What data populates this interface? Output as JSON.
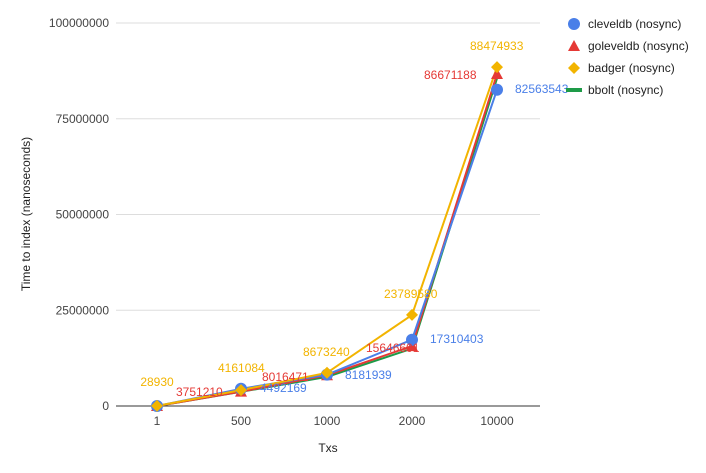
{
  "chart_data": {
    "type": "line",
    "title": "",
    "xlabel": "Txs",
    "ylabel": "Time to index (nanoseconds)",
    "categories": [
      "1",
      "500",
      "1000",
      "2000",
      "10000"
    ],
    "ylim": [
      0,
      100000000
    ],
    "yticks": [
      0,
      25000000,
      50000000,
      75000000,
      100000000
    ],
    "ytick_labels": [
      "0",
      "25000000",
      "50000000",
      "75000000",
      "100000000"
    ],
    "grid": "horizontal",
    "legend_position": "right",
    "series": [
      {
        "name": "cleveldb (nosync)",
        "marker": "circle",
        "color": "#4a7fe8",
        "values": [
          0,
          4492169,
          8181939,
          17310403,
          82563543
        ],
        "labels": [
          "",
          "4492169",
          "8181939",
          "17310403",
          "82563543"
        ]
      },
      {
        "name": "goleveldb (nosync)",
        "marker": "triangle",
        "color": "#e53935",
        "values": [
          0,
          3751210,
          8016471,
          15646601,
          86671188
        ],
        "labels": [
          "",
          "3751210",
          "8016471",
          "15646601",
          "86671188"
        ]
      },
      {
        "name": "badger (nosync)",
        "marker": "diamond",
        "color": "#f2b400",
        "values": [
          28930,
          4161084,
          8673240,
          23789580,
          88474933
        ],
        "labels": [
          "28930",
          "4161084",
          "8673240",
          "23789580",
          "88474933"
        ]
      },
      {
        "name": "bbolt (nosync)",
        "marker": "line",
        "color": "#1e9b48",
        "values": [
          0,
          3700000,
          7600000,
          15000000,
          85500000
        ],
        "labels": [
          "",
          "",
          "",
          "",
          ""
        ]
      }
    ]
  }
}
